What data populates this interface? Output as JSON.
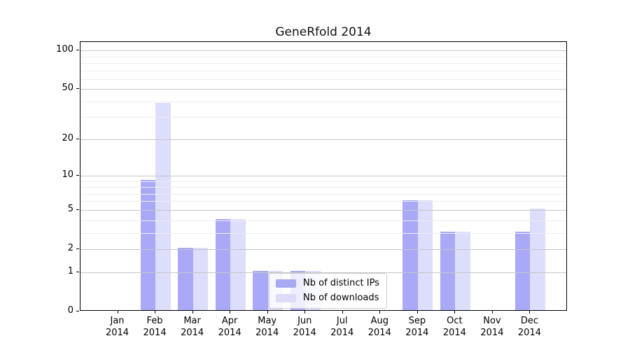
{
  "title": "GeneRfold 2014",
  "chart_data": {
    "type": "bar",
    "title": "GeneRfold 2014",
    "x_tick_year": "2014",
    "categories": [
      "Jan",
      "Feb",
      "Mar",
      "Apr",
      "May",
      "Jun",
      "Jul",
      "Aug",
      "Sep",
      "Oct",
      "Nov",
      "Dec"
    ],
    "series": [
      {
        "name": "Nb of distinct IPs",
        "bar_color": "rgba(50,50,235,0.42)",
        "legend_color": "#a9a9f6",
        "values": [
          0,
          9,
          2,
          4,
          1,
          1,
          0,
          0,
          6,
          3,
          0,
          3
        ]
      },
      {
        "name": "Nb of downloads",
        "bar_color": "rgba(50,50,235,0.165)",
        "legend_color": "#dcdcf9",
        "values": [
          0,
          38,
          2,
          4,
          1,
          1,
          0,
          0,
          6,
          3,
          0,
          5
        ]
      }
    ],
    "yscale": "log10(1+x)",
    "ylim": [
      0,
      116
    ],
    "y_major_ticks": [
      {
        "label": "100",
        "value": 100
      },
      {
        "label": "50",
        "value": 50
      },
      {
        "label": "20",
        "value": 20
      },
      {
        "label": "10",
        "value": 10
      },
      {
        "label": "5",
        "value": 5
      },
      {
        "label": "2",
        "value": 2
      },
      {
        "label": "1",
        "value": 1
      },
      {
        "label": "0",
        "value": 0
      }
    ],
    "y_minor_ticks": [
      3,
      4,
      6,
      7,
      8,
      9,
      30,
      40,
      60,
      70,
      80,
      90
    ],
    "grid": "on",
    "legend_position": "lower center"
  },
  "colors": {
    "grid_major": "#c6c6c6",
    "grid_minor": "#ededed",
    "axis": "#000000",
    "legend_border": "#cccccc",
    "background": "#ffffff"
  }
}
